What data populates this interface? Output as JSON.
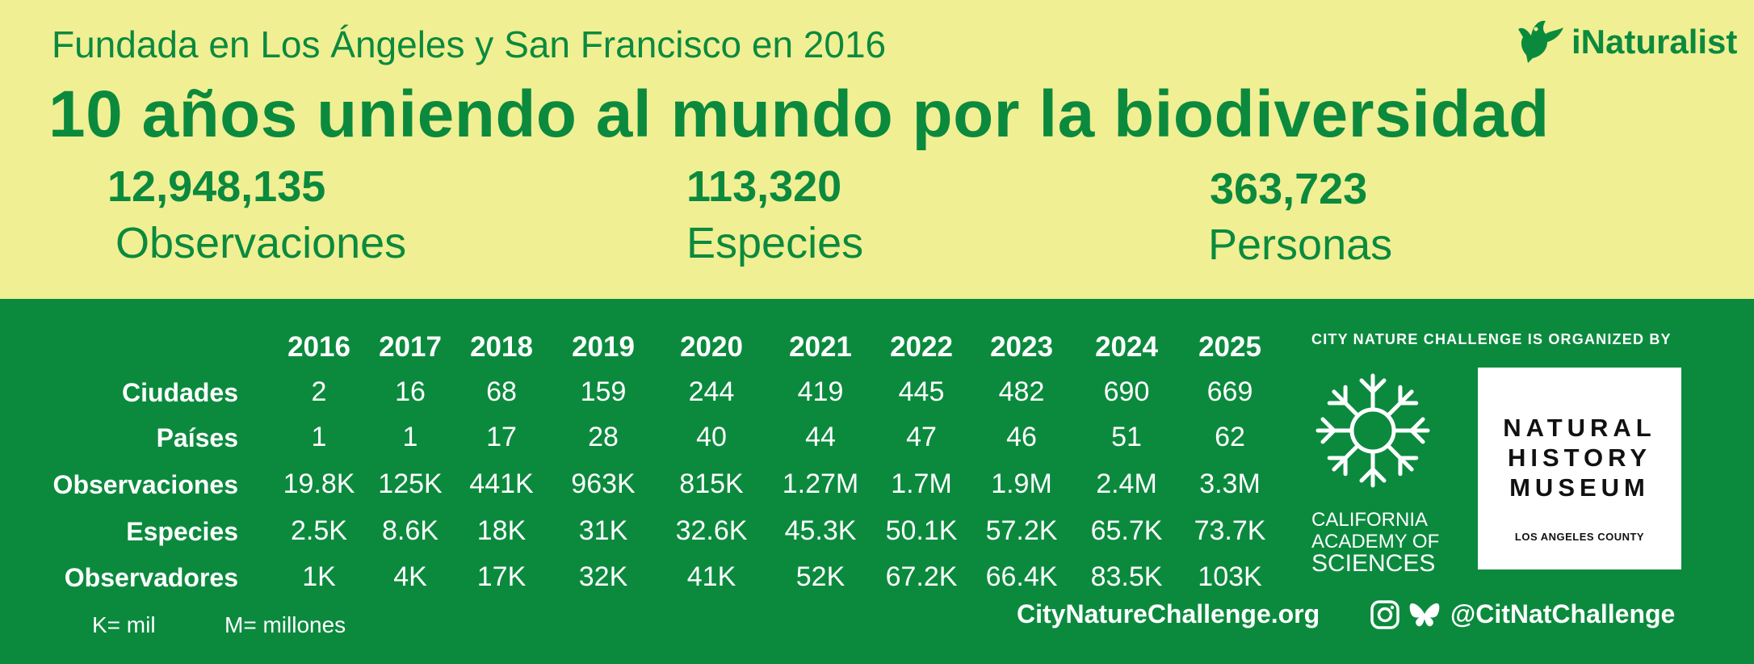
{
  "header": {
    "subtitle": "Fundada en Los Ángeles y San Francisco en 2016",
    "title": "10 años uniendo al mundo por la biodiversidad",
    "brand": "iNaturalist"
  },
  "stats": [
    {
      "value": "12,948,135",
      "label": "Observaciones"
    },
    {
      "value": "113,320",
      "label": "Especies"
    },
    {
      "value": "363,723",
      "label": "Personas"
    }
  ],
  "table": {
    "years": [
      "2016",
      "2017",
      "2018",
      "2019",
      "2020",
      "2021",
      "2022",
      "2023",
      "2024",
      "2025"
    ],
    "rows": [
      {
        "label": "Ciudades",
        "values": [
          "2",
          "16",
          "68",
          "159",
          "244",
          "419",
          "445",
          "482",
          "690",
          "669"
        ]
      },
      {
        "label": "Países",
        "values": [
          "1",
          "1",
          "17",
          "28",
          "40",
          "44",
          "47",
          "46",
          "51",
          "62"
        ]
      },
      {
        "label": "Observaciones",
        "values": [
          "19.8K",
          "125K",
          "441K",
          "963K",
          "815K",
          "1.27M",
          "1.7M",
          "1.9M",
          "2.4M",
          "3.3M"
        ]
      },
      {
        "label": "Especies",
        "values": [
          "2.5K",
          "8.6K",
          "18K",
          "31K",
          "32.6K",
          "45.3K",
          "50.1K",
          "57.2K",
          "65.7K",
          "73.7K"
        ]
      },
      {
        "label": "Observadores",
        "values": [
          "1K",
          "4K",
          "17K",
          "32K",
          "41K",
          "52K",
          "67.2K",
          "66.4K",
          "83.5K",
          "103K"
        ]
      }
    ]
  },
  "legend": {
    "k": "K= mil",
    "m": "M= millones"
  },
  "organizers": {
    "heading": "CITY NATURE CHALLENGE IS ORGANIZED BY",
    "cas_line1": "CALIFORNIA",
    "cas_line2": "ACADEMY OF",
    "cas_line3": "SCIENCES",
    "nhm_line1": "NATURAL",
    "nhm_line2": "HISTORY",
    "nhm_line3": "MUSEUM",
    "nhm_sub": "LOS ANGELES COUNTY"
  },
  "footer": {
    "website": "CityNatureChallenge.org",
    "handle": "@CitNatChallenge",
    "icons": [
      "instagram-icon",
      "bluesky-icon"
    ]
  },
  "colors": {
    "yellow": "#f1ef93",
    "green": "#0b8a3e",
    "white": "#ffffff"
  }
}
